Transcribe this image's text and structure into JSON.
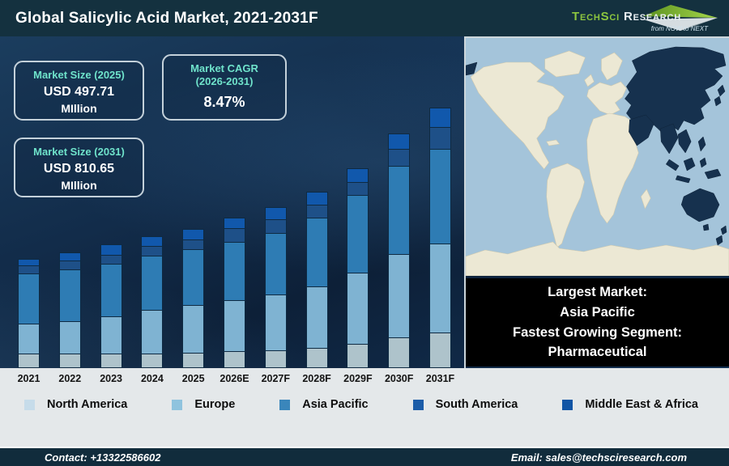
{
  "header": {
    "title": "Global Salicylic Acid Market, 2021-2031F",
    "logo": {
      "brand_primary": "TechSci",
      "brand_secondary": "Research",
      "tagline": "from NOW to NEXT"
    }
  },
  "callouts": {
    "size_2025": {
      "title": "Market Size (2025)",
      "value": "USD 497.71",
      "unit": "MIllion"
    },
    "cagr": {
      "title_line1": "Market CAGR",
      "title_line2": "(2026-2031)",
      "value": "8.47%"
    },
    "size_2031": {
      "title": "Market Size (2031)",
      "value": "USD 810.65",
      "unit": "MIllion"
    }
  },
  "chart_data": {
    "type": "bar",
    "stacked": true,
    "title": "Global Salicylic Acid Market, 2021-2031F",
    "xlabel": "",
    "ylabel": "",
    "y_axis_shown": false,
    "units": "relative stacked height (no value axis shown in figure)",
    "categories": [
      "2021",
      "2022",
      "2023",
      "2024",
      "2025",
      "2026E",
      "2027F",
      "2028F",
      "2029F",
      "2030F",
      "2031F"
    ],
    "series": [
      {
        "name": "North America",
        "color": "#aec3cb",
        "values": [
          18,
          18,
          18,
          18,
          19,
          21,
          22,
          25,
          30,
          38,
          44
        ]
      },
      {
        "name": "Europe",
        "color": "#7fb3d2",
        "values": [
          37,
          40,
          46,
          54,
          59,
          63,
          69,
          76,
          88,
          103,
          110
        ]
      },
      {
        "name": "Asia Pacific",
        "color": "#2e7cb4",
        "values": [
          62,
          64,
          65,
          67,
          69,
          72,
          76,
          85,
          96,
          109,
          117
        ]
      },
      {
        "name": "South America",
        "color": "#1e5088",
        "values": [
          10,
          11,
          11,
          12,
          12,
          17,
          17,
          16,
          16,
          21,
          27
        ]
      },
      {
        "name": "Middle East & Africa",
        "color": "#1158ac",
        "values": [
          8,
          10,
          13,
          12,
          13,
          13,
          15,
          16,
          17,
          19,
          24
        ]
      }
    ],
    "segment_outline_color": "#0e2a42",
    "legend_position": "bottom",
    "annotations": {
      "market_size_2025_usd_million": 497.71,
      "market_size_2031_usd_million": 810.65,
      "cagr_2026_2031_percent": 8.47
    }
  },
  "legend": {
    "items": [
      {
        "label": "North America",
        "color": "#c6dcea"
      },
      {
        "label": "Europe",
        "color": "#8fc3de"
      },
      {
        "label": "Asia Pacific",
        "color": "#3a86bb"
      },
      {
        "label": "South America",
        "color": "#1b5ca8"
      },
      {
        "label": "Middle East & Africa",
        "color": "#1155a5"
      }
    ]
  },
  "map": {
    "ocean_color": "#a4c4da",
    "land_color": "#ece8d4",
    "highlight_color": "#16314e",
    "highlighted_region": "Asia Pacific"
  },
  "info_box": {
    "lines": [
      "Largest Market:",
      "Asia Pacific",
      "Fastest Growing Segment:",
      "Pharmaceutical"
    ]
  },
  "footer": {
    "contact": "Contact: +13322586602",
    "email": "Email: sales@techsciresearch.com"
  }
}
